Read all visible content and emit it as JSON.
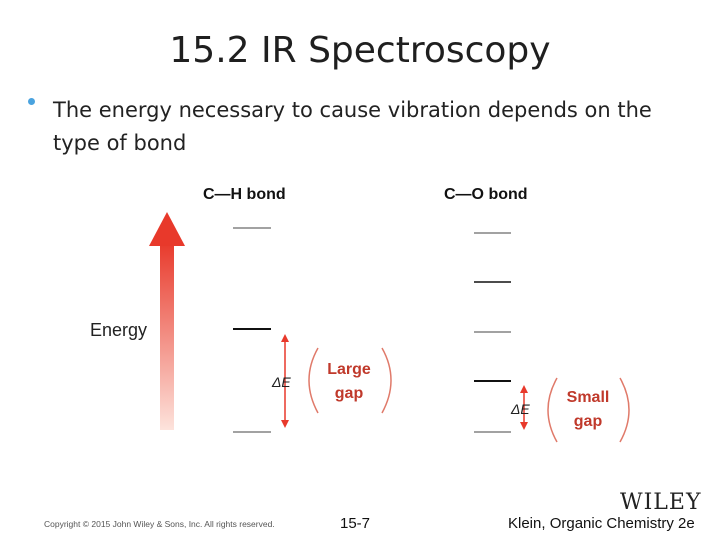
{
  "slide": {
    "title": "15.2 IR Spectroscopy",
    "bullet": "The energy necessary to cause vibration depends on the type of bond"
  },
  "diagram": {
    "energy_label": "Energy",
    "ch_bond": {
      "title": "C—H bond",
      "delta_label": "ΔE",
      "gap_line1": "Large",
      "gap_line2": "gap"
    },
    "co_bond": {
      "title": "C—O bond",
      "delta_label": "ΔE",
      "gap_line1": "Small",
      "gap_line2": "gap"
    },
    "colors": {
      "arrow_top": "#e8392b",
      "arrow_bottom": "#fde3dc",
      "gap_text": "#c0392b",
      "bracket": "#e07a6a",
      "level_line": "#111111"
    }
  },
  "footer": {
    "copyright": "Copyright © 2015 John Wiley & Sons, Inc. All rights reserved.",
    "page": "15-7",
    "book": "Klein, Organic Chemistry 2e",
    "logo": "WILEY"
  }
}
